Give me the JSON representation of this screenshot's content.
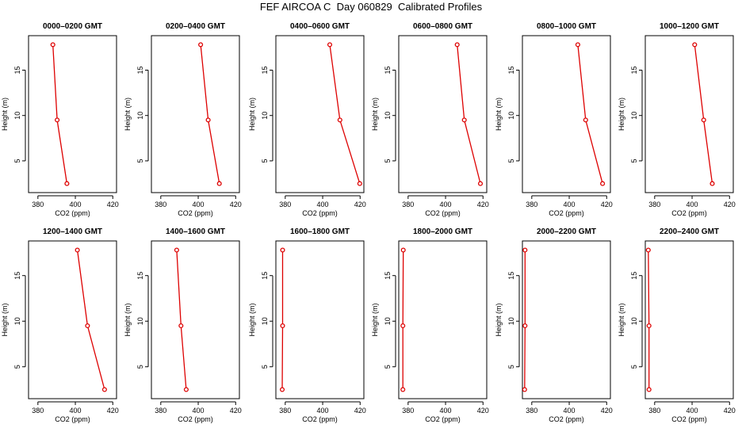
{
  "title": "FEF AIRCOA C  Day 060829  Calibrated Profiles",
  "chart_data": {
    "type": "line",
    "title": "FEF AIRCOA C  Day 060829  Calibrated Profiles",
    "layout": "2 rows x 6 columns",
    "xlabel": "CO2 (ppm)",
    "ylabel": "Height (m)",
    "xlim": [
      375,
      422
    ],
    "ylim": [
      1.5,
      18.8
    ],
    "xticks": [
      380,
      400,
      420
    ],
    "yticks": [
      5,
      10,
      15
    ],
    "line_color": "#dd0000",
    "heights": [
      2.5,
      9.5,
      17.8
    ],
    "panels": [
      {
        "title": "0000–0200 GMT",
        "x": [
          395.5,
          390.3,
          388.0
        ],
        "y": [
          2.5,
          9.5,
          17.8
        ]
      },
      {
        "title": "0200–0400 GMT",
        "x": [
          411.3,
          405.3,
          401.3
        ],
        "y": [
          2.5,
          9.5,
          17.8
        ]
      },
      {
        "title": "0400–0600 GMT",
        "x": [
          419.8,
          409.2,
          403.8
        ],
        "y": [
          2.5,
          9.5,
          17.8
        ]
      },
      {
        "title": "0600–0800 GMT",
        "x": [
          418.6,
          410.0,
          406.2
        ],
        "y": [
          2.5,
          9.5,
          17.8
        ]
      },
      {
        "title": "0800–1000 GMT",
        "x": [
          417.8,
          408.8,
          404.6
        ],
        "y": [
          2.5,
          9.5,
          17.8
        ]
      },
      {
        "title": "1000–1200 GMT",
        "x": [
          410.8,
          406.2,
          401.4
        ],
        "y": [
          2.5,
          9.5,
          17.8
        ]
      },
      {
        "title": "1200–1400 GMT",
        "x": [
          415.6,
          406.5,
          401.1
        ],
        "y": [
          2.5,
          9.5,
          17.8
        ]
      },
      {
        "title": "1400–1600 GMT",
        "x": [
          393.6,
          390.8,
          388.5
        ],
        "y": [
          2.5,
          9.5,
          17.8
        ]
      },
      {
        "title": "1600–1800 GMT",
        "x": [
          378.4,
          378.6,
          378.6
        ],
        "y": [
          2.5,
          9.5,
          17.8
        ]
      },
      {
        "title": "1800–2000 GMT",
        "x": [
          377.2,
          377.2,
          377.4
        ],
        "y": [
          2.5,
          9.5,
          17.8
        ]
      },
      {
        "title": "2000–2200 GMT",
        "x": [
          376.2,
          376.4,
          376.4
        ],
        "y": [
          2.5,
          9.5,
          17.8
        ]
      },
      {
        "title": "2200–2400 GMT",
        "x": [
          377.0,
          377.0,
          376.6
        ],
        "y": [
          2.5,
          9.5,
          17.8
        ]
      }
    ]
  }
}
